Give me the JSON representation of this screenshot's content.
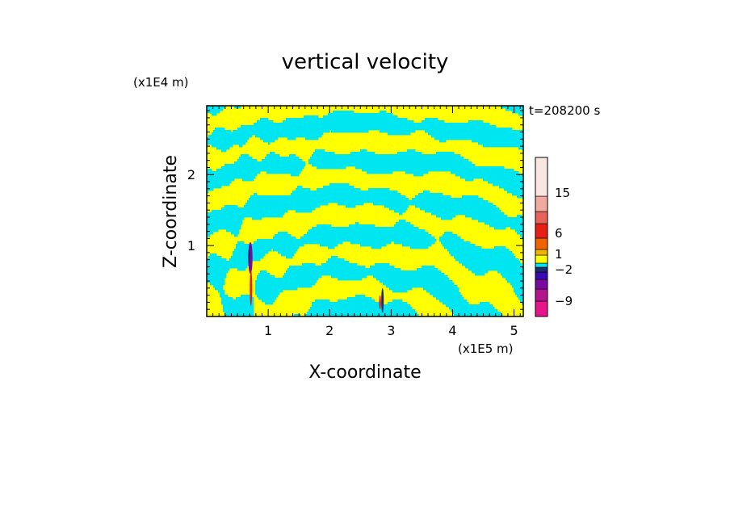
{
  "chart_data": {
    "type": "heatmap",
    "title": "vertical velocity",
    "xlabel": "X-coordinate",
    "ylabel": "Z-coordinate",
    "x_unit": "(x1E5 m)",
    "y_unit": "(x1E4 m)",
    "time_label": "t=208200 s",
    "xlim": [
      0.0,
      5.15
    ],
    "ylim": [
      0.0,
      2.97
    ],
    "x_ticks": [
      "1",
      "2",
      "3",
      "4",
      "5"
    ],
    "y_ticks": [
      "1",
      "2"
    ],
    "colorbar": {
      "tick_labels": [
        "15",
        "6",
        "1",
        "-2",
        "-9"
      ],
      "levels_bottom_to_top": [
        {
          "color": "#e8148c"
        },
        {
          "color": "#b4148c"
        },
        {
          "color": "#7a0aa0"
        },
        {
          "color": "#3a0ab4"
        },
        {
          "color": "#1c2a6e"
        },
        {
          "color": "#00e6f0"
        },
        {
          "color": "#ffff00"
        },
        {
          "color": "#f0b400"
        },
        {
          "color": "#f06400"
        },
        {
          "color": "#e61e14"
        },
        {
          "color": "#e6645a"
        },
        {
          "color": "#f0aaa0"
        },
        {
          "color": "#fae6e0"
        }
      ]
    },
    "dominant_colors": {
      "updraft": "#ffff00",
      "downdraft": "#00e6f0"
    }
  }
}
